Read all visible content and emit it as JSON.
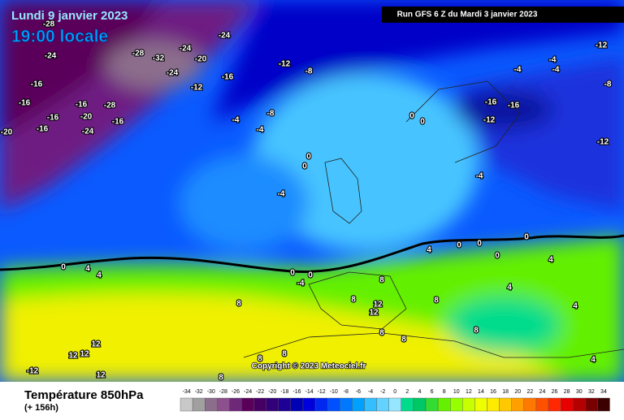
{
  "header": {
    "date": "Lundi 9 janvier 2023",
    "time": "19:00 locale",
    "run": "Run GFS 6 Z du Mardi 3 janvier 2023"
  },
  "footer": {
    "title": "Température 850hPa",
    "lead": "(+ 156h)",
    "copyright": "Copyright © 2023 Meteociel.fr"
  },
  "scale": {
    "labels": [
      -34,
      -32,
      -30,
      -28,
      -26,
      -24,
      -22,
      -20,
      -18,
      -16,
      -14,
      -12,
      -10,
      -8,
      -6,
      -4,
      -2,
      0,
      2,
      4,
      6,
      8,
      10,
      12,
      14,
      16,
      18,
      20,
      22,
      24,
      26,
      28,
      30,
      32,
      34
    ],
    "colors": [
      "#c8c8c8",
      "#a0a0a0",
      "#8c6e8c",
      "#8c508c",
      "#6e2878",
      "#5a005a",
      "#460064",
      "#320078",
      "#1e0096",
      "#0000b4",
      "#0000dc",
      "#0028f0",
      "#0050ff",
      "#0078ff",
      "#00a0ff",
      "#32beff",
      "#64d2ff",
      "#96e6ff",
      "#00dc8c",
      "#00c864",
      "#32dc32",
      "#64f000",
      "#96ff00",
      "#c8ff00",
      "#f0ff00",
      "#ffeb00",
      "#ffc800",
      "#ffa000",
      "#ff7800",
      "#ff5000",
      "#ff2800",
      "#e60000",
      "#b40000",
      "#780000",
      "#3c0000"
    ]
  },
  "contour_labels": [
    -28,
    -24,
    -24,
    -28,
    -32,
    -20,
    -24,
    -24,
    -12,
    -8,
    -12,
    -16,
    -16,
    -16,
    -16,
    -28,
    -16,
    -20,
    -24,
    -16,
    -20,
    -16,
    -8,
    -4,
    -4,
    0,
    0,
    -4,
    0,
    0,
    -4,
    -4,
    -4,
    -12,
    -8,
    -16,
    -16,
    -12,
    -12,
    -4,
    0,
    0,
    0,
    0,
    4,
    4,
    4,
    4,
    0,
    4,
    4,
    0,
    0,
    -4,
    8,
    8,
    12,
    12,
    8,
    8,
    8,
    8,
    12,
    12,
    12,
    8,
    8,
    8,
    -12,
    12,
    8,
    4
  ]
}
